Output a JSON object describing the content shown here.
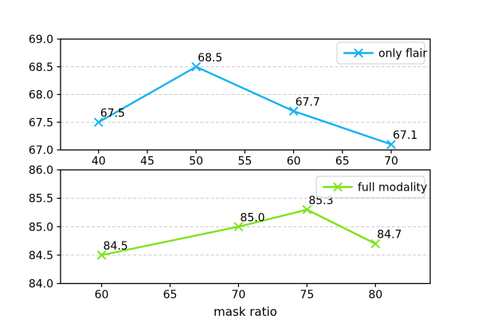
{
  "figure": {
    "xlabel": "mask ratio",
    "background_color": "#ffffff",
    "spine_color": "#000000",
    "grid_color": "#c9c9c9",
    "text_color": "#000000",
    "legend_border_color": "#cccccc"
  },
  "chart_data": [
    {
      "type": "line",
      "title": "",
      "xlabel": "",
      "ylabel": "",
      "xlim": [
        36.1,
        74.0
      ],
      "ylim": [
        67.0,
        69.0
      ],
      "xtick_values": [
        40,
        45,
        50,
        55,
        60,
        65,
        70
      ],
      "xtick_labels": [
        "40",
        "45",
        "50",
        "55",
        "60",
        "65",
        "70"
      ],
      "ytick_values": [
        67.0,
        67.5,
        68.0,
        68.5,
        69.0
      ],
      "ytick_labels": [
        "67.0",
        "67.5",
        "68.0",
        "68.5",
        "69.0"
      ],
      "grid": "horizontal-dashed",
      "legend_position": "upper right",
      "series": [
        {
          "name": "only flair",
          "color": "#16b2f2",
          "marker": "x",
          "x": [
            40,
            50,
            60,
            70
          ],
          "y": [
            67.5,
            68.5,
            67.7,
            67.1
          ],
          "point_labels": [
            "67.5",
            "68.5",
            "67.7",
            "67.1"
          ]
        }
      ]
    },
    {
      "type": "line",
      "title": "",
      "xlabel": "mask ratio",
      "ylabel": "",
      "xlim": [
        57.0,
        84.0
      ],
      "ylim": [
        84.0,
        86.0
      ],
      "xtick_values": [
        60,
        65,
        70,
        75,
        80
      ],
      "xtick_labels": [
        "60",
        "65",
        "70",
        "75",
        "80"
      ],
      "ytick_values": [
        84.0,
        84.5,
        85.0,
        85.5,
        86.0
      ],
      "ytick_labels": [
        "84.0",
        "84.5",
        "85.0",
        "85.5",
        "86.0"
      ],
      "grid": "horizontal-dashed",
      "legend_position": "upper right",
      "series": [
        {
          "name": "full modality",
          "color": "#7ce41c",
          "marker": "x",
          "x": [
            60,
            70,
            75,
            80
          ],
          "y": [
            84.5,
            85.0,
            85.3,
            84.7
          ],
          "point_labels": [
            "84.5",
            "85.0",
            "85.3",
            "84.7"
          ]
        }
      ]
    }
  ]
}
